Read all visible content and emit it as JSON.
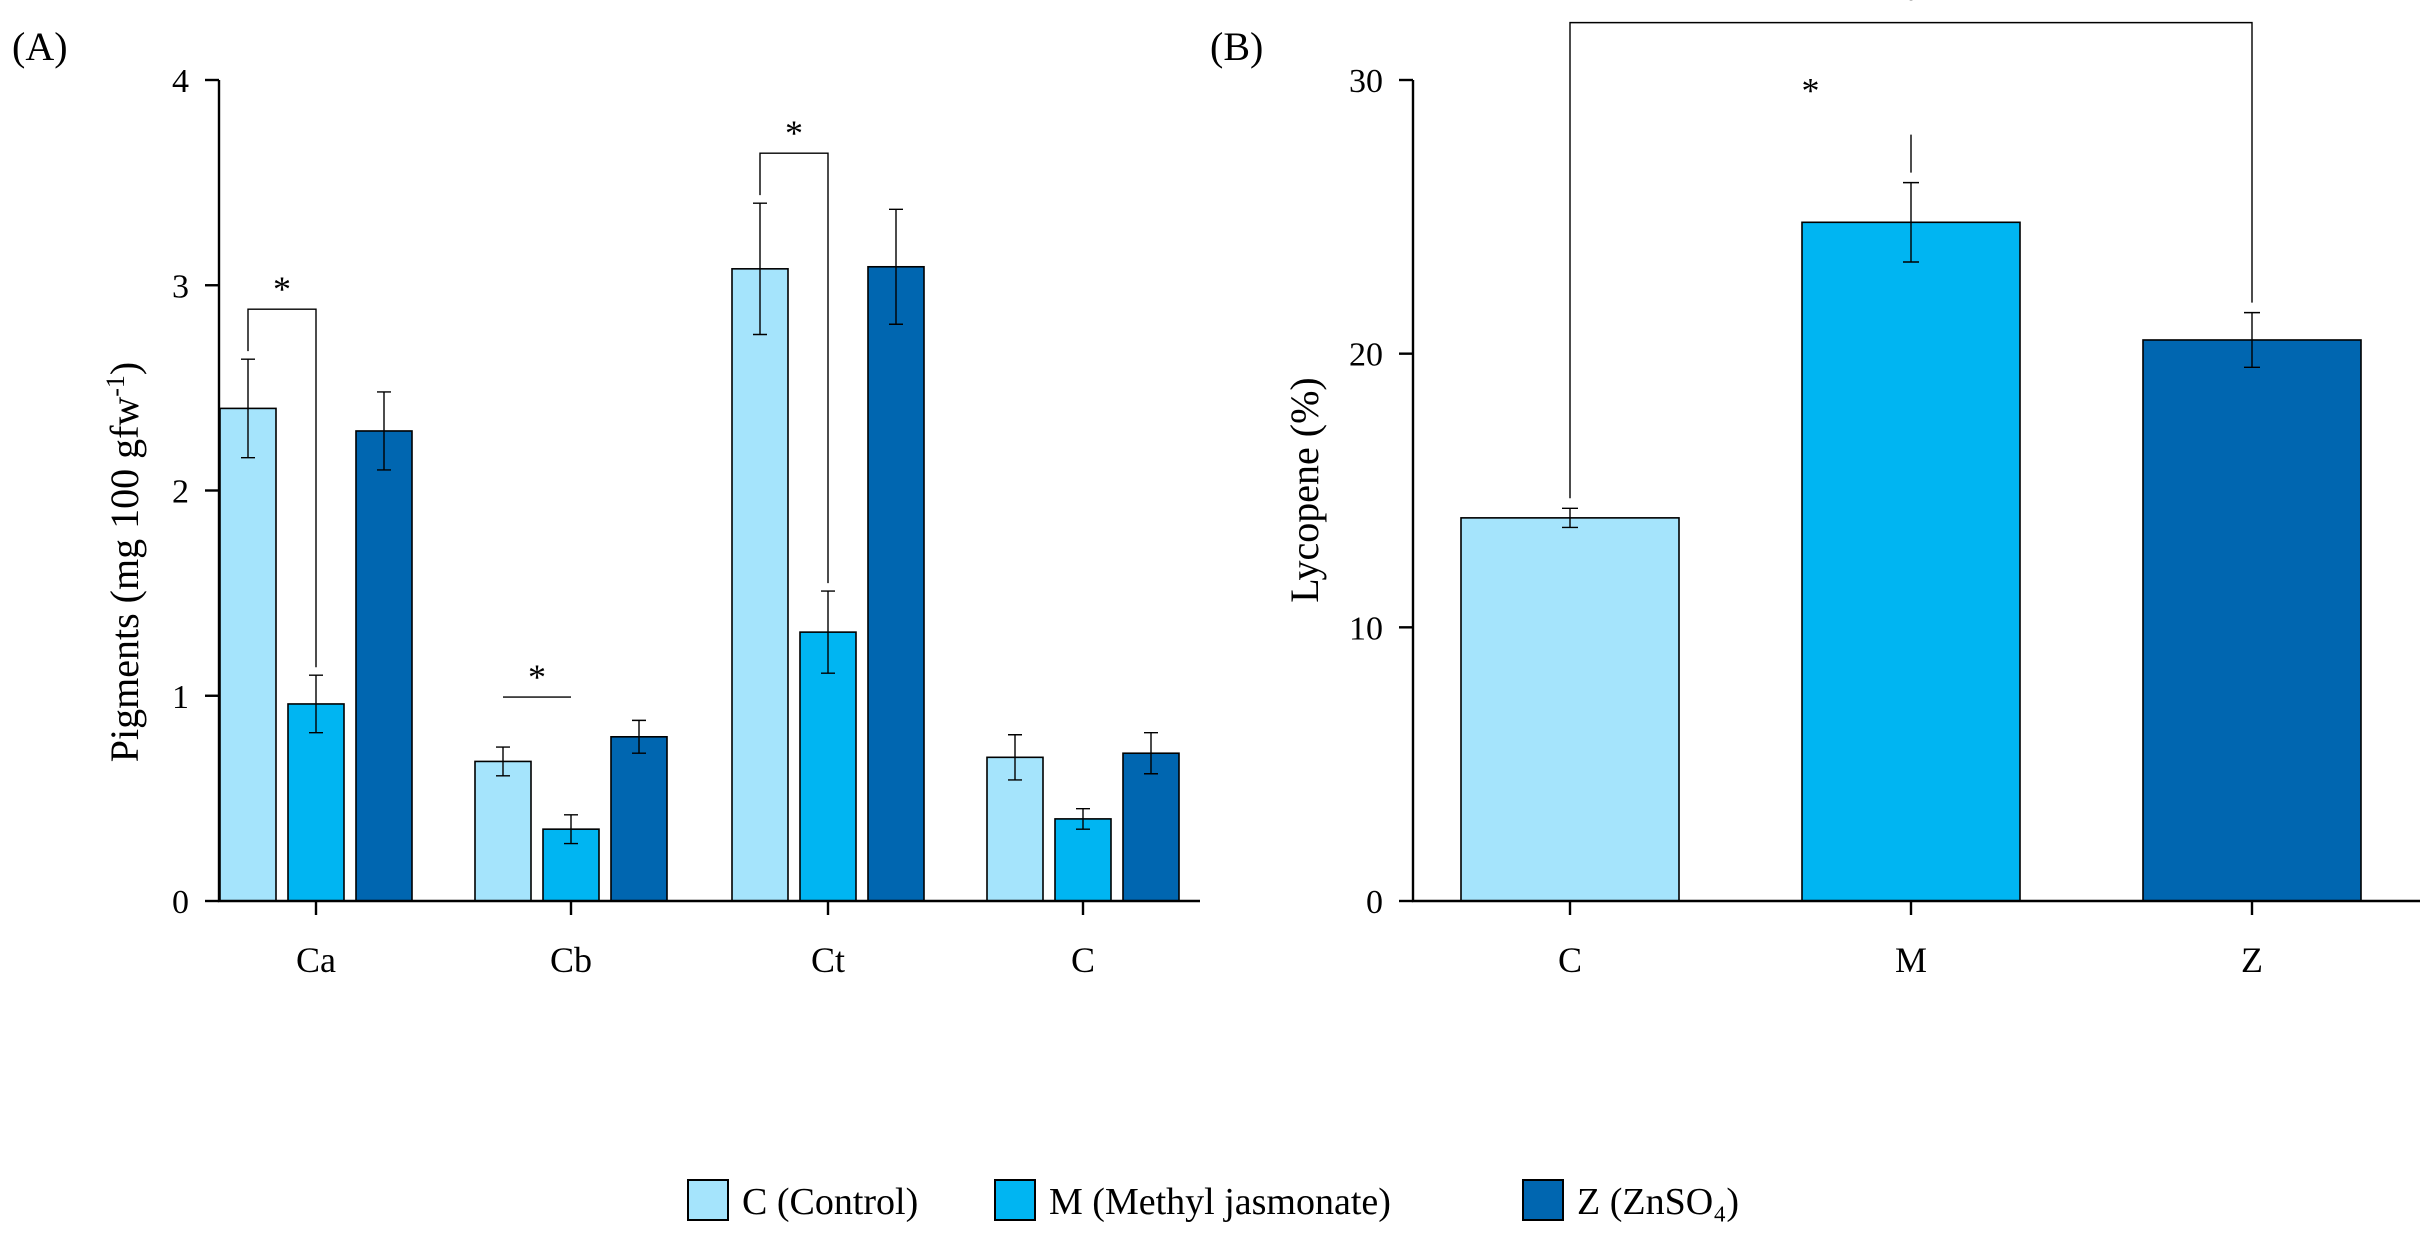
{
  "colors": {
    "C": "#a5e4fc",
    "M": "#00b5f2",
    "Z": "#0066b0"
  },
  "chart_data": [
    {
      "type": "bar",
      "panel_label": "(A)",
      "ylabel_main": "Pigments (mg 100 gfw",
      "ylabel_sup": "-1",
      "ylabel_tail": ")",
      "ylim": [
        0,
        4
      ],
      "yticks": [
        "0",
        "1",
        "2",
        "3",
        "4"
      ],
      "categories": [
        "Ca",
        "Cb",
        "Ct",
        "C"
      ],
      "series": [
        {
          "key": "C",
          "name": "C (Control)",
          "values": [
            2.4,
            0.68,
            3.08,
            0.7
          ],
          "errors": [
            0.24,
            0.07,
            0.32,
            0.11
          ]
        },
        {
          "key": "M",
          "name": "M (Methyl jasmonate)",
          "values": [
            0.96,
            0.35,
            1.31,
            0.4
          ],
          "errors": [
            0.14,
            0.07,
            0.2,
            0.05
          ]
        },
        {
          "key": "Z",
          "name": "Z (ZnSO4)",
          "values": [
            2.29,
            0.8,
            3.09,
            0.72
          ],
          "errors": [
            0.19,
            0.08,
            0.28,
            0.1
          ]
        }
      ],
      "annotations": [
        {
          "text": "*",
          "category": 0,
          "from": 0,
          "to": 1,
          "bracket": true
        },
        {
          "text": "*",
          "category": 1,
          "from": 0,
          "to": 1,
          "bracket": false
        },
        {
          "text": "*",
          "category": 2,
          "from": 0,
          "to": 1,
          "bracket": true
        }
      ]
    },
    {
      "type": "bar",
      "panel_label": "(B)",
      "ylabel": "Lycopene (%)",
      "ylim": [
        0,
        30
      ],
      "yticks": [
        "0",
        "10",
        "20",
        "30"
      ],
      "categories": [
        "C",
        "M",
        "Z"
      ],
      "values": [
        14.0,
        24.8,
        20.5
      ],
      "errors": [
        0.35,
        1.45,
        1.0
      ],
      "annotations": [
        {
          "text": "*",
          "from": "C",
          "to": "Z",
          "bracket": true
        },
        {
          "text": "*",
          "from": "C",
          "to": "M",
          "bracket": false
        }
      ]
    }
  ],
  "legend": {
    "items": [
      {
        "key": "C",
        "label": "C (Control)"
      },
      {
        "key": "M",
        "label": "M (Methyl jasmonate)"
      },
      {
        "key": "Z",
        "label": "Z (ZnSO₄)"
      }
    ]
  }
}
